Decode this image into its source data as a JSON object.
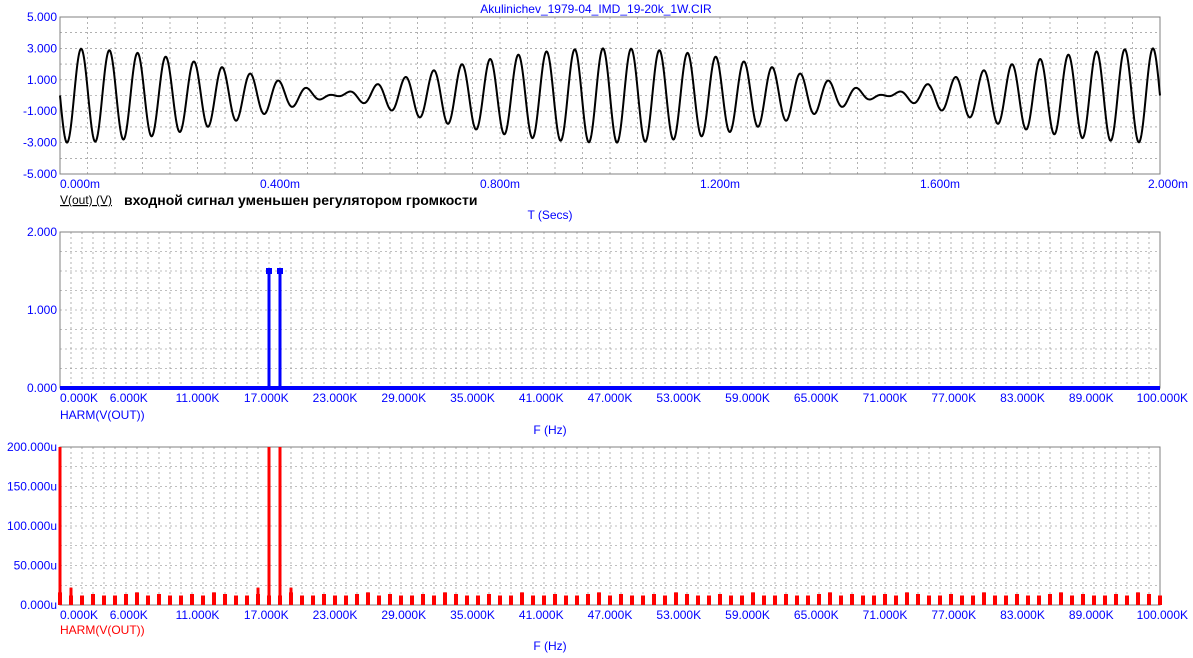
{
  "window": {
    "title": "Akulinichev_1979-04_IMD_19-20k_1W.CIR"
  },
  "annotation": "входной сигнал уменьшен регулятором громкости",
  "colors": {
    "axis_tick": "#0000ff",
    "trace1": "#000000",
    "trace2": "#0000ff",
    "trace3": "#ff0000",
    "grid": "#808080"
  },
  "chart_data": [
    {
      "type": "line",
      "title": "",
      "xlabel": "T (Secs)",
      "ylabel": "V(out) (V)",
      "xlim": [
        0,
        0.002
      ],
      "ylim": [
        -5,
        5
      ],
      "x_tick_labels": [
        "0.000m",
        "0.400m",
        "0.800m",
        "1.200m",
        "1.600m",
        "2.000m"
      ],
      "y_tick_labels": [
        "5.000",
        "3.000",
        "1.000",
        "-1.000",
        "-3.000",
        "-5.000"
      ],
      "grid": true,
      "series": [
        {
          "name": "V(out) (V)",
          "signal": "sum of two sines",
          "components": [
            {
              "freq_hz": 19000,
              "amplitude": 1.5
            },
            {
              "freq_hz": 20000,
              "amplitude": 1.5
            }
          ]
        }
      ]
    },
    {
      "type": "bar",
      "title": "",
      "xlabel": "F (Hz)",
      "ylabel": "HARM(V(OUT))",
      "xlim": [
        0,
        100000
      ],
      "ylim": [
        0,
        2
      ],
      "x_tick_labels": [
        "0.000K",
        "6.000K",
        "11.000K",
        "17.000K",
        "23.000K",
        "29.000K",
        "35.000K",
        "41.000K",
        "47.000K",
        "53.000K",
        "59.000K",
        "65.000K",
        "71.000K",
        "77.000K",
        "83.000K",
        "89.000K",
        "100.000K"
      ],
      "y_tick_labels": [
        "2.000",
        "1.000",
        "0.000"
      ],
      "grid": true,
      "series": [
        {
          "name": "HARM(V(OUT))",
          "points": [
            {
              "x": 19000,
              "y": 1.5
            },
            {
              "x": 20000,
              "y": 1.5
            }
          ],
          "baseline": 0
        }
      ]
    },
    {
      "type": "bar",
      "title": "",
      "xlabel": "F (Hz)",
      "ylabel": "HARM(V(OUT))",
      "xlim": [
        0,
        100000
      ],
      "ylim": [
        0,
        0.0002
      ],
      "x_tick_labels": [
        "0.000K",
        "6.000K",
        "11.000K",
        "17.000K",
        "23.000K",
        "29.000K",
        "35.000K",
        "41.000K",
        "47.000K",
        "53.000K",
        "59.000K",
        "65.000K",
        "71.000K",
        "77.000K",
        "83.000K",
        "89.000K",
        "100.000K"
      ],
      "y_tick_labels": [
        "200.000u",
        "150.000u",
        "100.000u",
        "50.000u",
        "0.000u"
      ],
      "grid": true,
      "series": [
        {
          "name": "HARM(V(OUT))",
          "points": [
            {
              "x": 0,
              "y": 0.0002
            },
            {
              "x": 1000,
              "y": 2.2e-05
            },
            {
              "x": 18000,
              "y": 2.2e-05
            },
            {
              "x": 19000,
              "y": 0.0002
            },
            {
              "x": 20000,
              "y": 0.0002
            },
            {
              "x": 21000,
              "y": 2.2e-05
            }
          ],
          "noise_floor": 1.2e-05
        }
      ]
    }
  ]
}
